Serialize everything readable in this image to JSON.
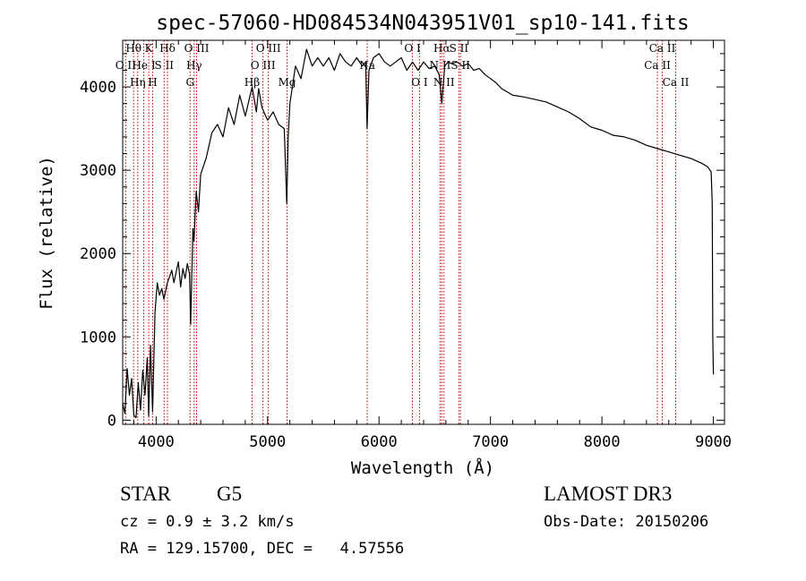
{
  "chart_data": {
    "type": "line",
    "title": "spec-57060-HD084534N043951V01_sp10-141.fits",
    "xlabel": "Wavelength (Å)",
    "ylabel": "Flux (relative)",
    "xlim": [
      3700,
      9100
    ],
    "ylim": [
      -50,
      4560
    ],
    "xticks": [
      4000,
      5000,
      6000,
      7000,
      8000,
      9000
    ],
    "yticks": [
      0,
      1000,
      2000,
      3000,
      4000
    ],
    "grid": false,
    "series": [
      {
        "name": "flux",
        "x": [
          3700,
          3720,
          3740,
          3760,
          3780,
          3800,
          3820,
          3840,
          3860,
          3880,
          3900,
          3920,
          3933,
          3950,
          3968,
          3990,
          4010,
          4030,
          4050,
          4070,
          4101,
          4120,
          4140,
          4160,
          4180,
          4200,
          4220,
          4240,
          4260,
          4280,
          4300,
          4310,
          4330,
          4340,
          4360,
          4380,
          4400,
          4450,
          4500,
          4550,
          4600,
          4650,
          4700,
          4750,
          4800,
          4861,
          4900,
          4920,
          4950,
          5000,
          5050,
          5100,
          5150,
          5172,
          5185,
          5200,
          5250,
          5300,
          5350,
          5400,
          5450,
          5500,
          5550,
          5600,
          5650,
          5700,
          5750,
          5800,
          5850,
          5880,
          5893,
          5910,
          5950,
          6000,
          6050,
          6100,
          6150,
          6200,
          6250,
          6300,
          6350,
          6400,
          6450,
          6500,
          6540,
          6563,
          6590,
          6620,
          6650,
          6700,
          6750,
          6800,
          6850,
          6900,
          6950,
          7000,
          7050,
          7100,
          7200,
          7300,
          7400,
          7500,
          7600,
          7700,
          7800,
          7900,
          8000,
          8100,
          8200,
          8300,
          8400,
          8500,
          8600,
          8700,
          8800,
          8900,
          8950,
          8980,
          8990,
          8995,
          9000
        ],
        "y": [
          200,
          80,
          620,
          300,
          500,
          60,
          30,
          450,
          120,
          600,
          300,
          750,
          50,
          900,
          100,
          1300,
          1650,
          1500,
          1580,
          1450,
          1650,
          1720,
          1800,
          1650,
          1780,
          1900,
          1600,
          1820,
          1700,
          1880,
          1750,
          1150,
          2300,
          2150,
          2750,
          2500,
          2950,
          3150,
          3450,
          3550,
          3400,
          3750,
          3550,
          3900,
          3650,
          4000,
          3700,
          3980,
          3750,
          3600,
          3700,
          3550,
          3500,
          2600,
          3400,
          3800,
          4250,
          4100,
          4450,
          4250,
          4350,
          4250,
          4350,
          4200,
          4400,
          4300,
          4250,
          4350,
          4250,
          4300,
          3500,
          4200,
          4350,
          4400,
          4300,
          4250,
          4300,
          4350,
          4200,
          4300,
          4200,
          4300,
          4220,
          4250,
          4150,
          3800,
          4250,
          4300,
          4280,
          4300,
          4250,
          4280,
          4200,
          4220,
          4150,
          4100,
          4050,
          3980,
          3900,
          3880,
          3850,
          3820,
          3760,
          3700,
          3620,
          3520,
          3480,
          3420,
          3400,
          3360,
          3300,
          3260,
          3220,
          3180,
          3140,
          3080,
          3040,
          2980,
          2600,
          1000,
          550
        ]
      }
    ],
    "line_markers": [
      {
        "name": "O II",
        "x": 3727,
        "label_row": 1
      },
      {
        "name": "Hθ",
        "x": 3798,
        "label_row": 0
      },
      {
        "name": "Hη",
        "x": 3835,
        "label_row": 2
      },
      {
        "name": "He I",
        "x": 3889,
        "label_row": 1
      },
      {
        "name": "K",
        "x": 3934,
        "label_row": 0
      },
      {
        "name": "H",
        "x": 3969,
        "label_row": 2
      },
      {
        "name": "S II",
        "x": 4072,
        "label_row": 1
      },
      {
        "name": "Hδ",
        "x": 4102,
        "label_row": 0
      },
      {
        "name": "G",
        "x": 4305,
        "label_row": 2
      },
      {
        "name": "Hγ",
        "x": 4341,
        "label_row": 1
      },
      {
        "name": "O III",
        "x": 4363,
        "label_row": 0
      },
      {
        "name": "Hβ",
        "x": 4861,
        "label_row": 2
      },
      {
        "name": "O III",
        "x": 4959,
        "label_row": 1
      },
      {
        "name": "O III",
        "x": 5007,
        "label_row": 0
      },
      {
        "name": "Mg",
        "x": 5175,
        "label_row": 2
      },
      {
        "name": "Na",
        "x": 5894,
        "label_row": 1
      },
      {
        "name": "O I",
        "x": 6300,
        "label_row": 0
      },
      {
        "name": "O I",
        "x": 6363,
        "label_row": 2
      },
      {
        "name": "N II",
        "x": 6548,
        "label_row": 1
      },
      {
        "name": "Hα",
        "x": 6563,
        "label_row": 0
      },
      {
        "name": "N II",
        "x": 6583,
        "label_row": 2
      },
      {
        "name": "S II",
        "x": 6716,
        "label_row": 0
      },
      {
        "name": "S II",
        "x": 6731,
        "label_row": 1
      },
      {
        "name": "Ca II",
        "x": 8498,
        "label_row": 1
      },
      {
        "name": "Ca II",
        "x": 8542,
        "label_row": 0
      },
      {
        "name": "Ca II",
        "x": 8662,
        "label_row": 2
      }
    ]
  },
  "info": {
    "object_class": "STAR",
    "subclass": "G5",
    "survey": "LAMOST DR3",
    "velocity": "cz = 0.9 ± 3.2 km/s",
    "obs_date": "Obs-Date: 20150206",
    "coords": "RA = 129.15700, DEC =   4.57556"
  }
}
